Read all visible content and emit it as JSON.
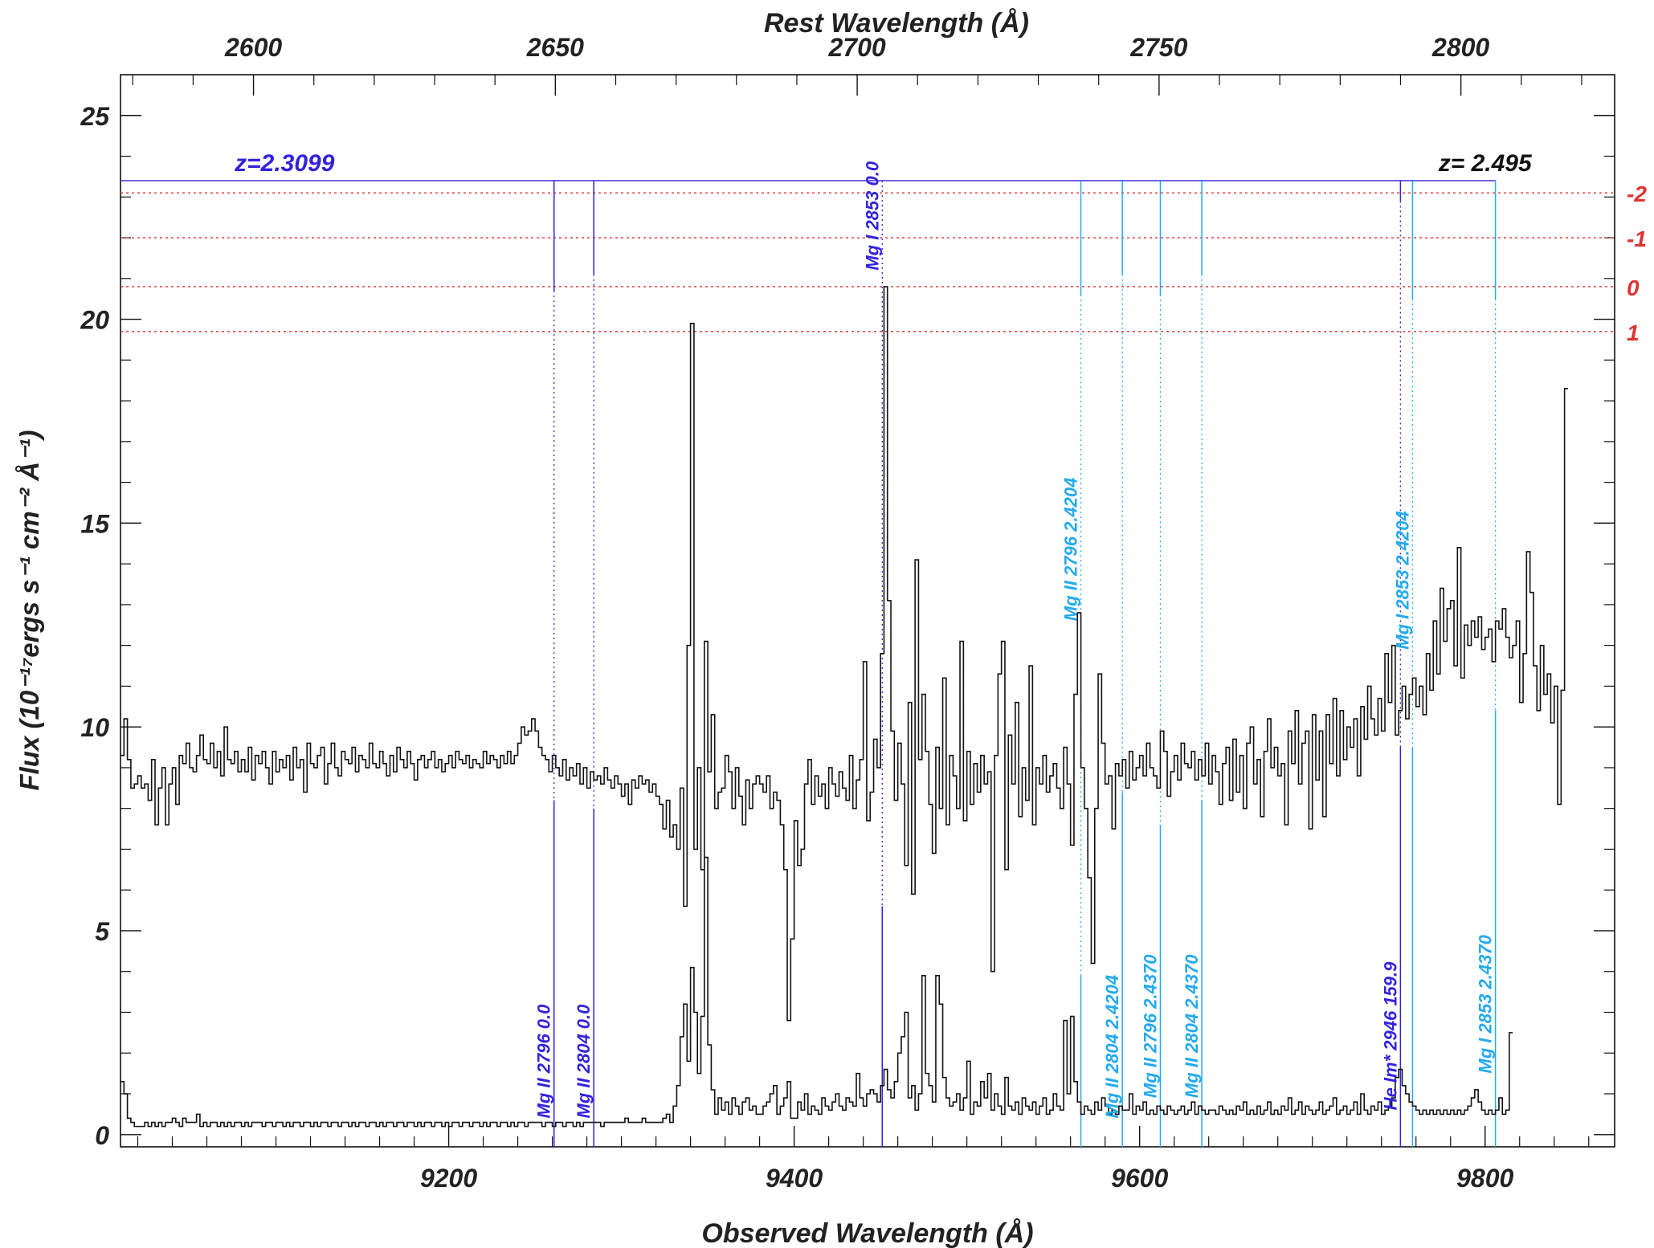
{
  "chart_data": {
    "type": "line",
    "title": "",
    "xlabel": "Observed Wavelength (Å)",
    "ylabel": "Flux (10⁻¹⁷ergs s⁻¹ cm⁻² Å⁻¹)",
    "top_xlabel": "Rest Wavelength (Å)",
    "xlim": [
      9010,
      9875
    ],
    "ylim": [
      -0.3,
      26
    ],
    "x_ticks": [
      9200,
      9400,
      9600,
      9800
    ],
    "x_tick_labels": [
      "9200",
      "9400",
      "9600",
      "9800"
    ],
    "y_ticks": [
      0,
      5,
      10,
      15,
      20,
      25
    ],
    "y_tick_labels": [
      "0",
      "5",
      "10",
      "15",
      "20",
      "25"
    ],
    "top_rest_z": 2.495,
    "top_ticks": [
      2600,
      2650,
      2700,
      2750,
      2800
    ],
    "top_tick_labels": [
      "2600",
      "2650",
      "2700",
      "2750",
      "2800"
    ],
    "grid": false,
    "series": [
      {
        "key": "flux",
        "color": "#111111",
        "x_start": 9010,
        "x_step": 2.0,
        "values": [
          9.3,
          10.2,
          9.2,
          8.5,
          8.6,
          8.8,
          8.5,
          8.6,
          8.2,
          9.2,
          7.6,
          8.5,
          9.0,
          7.6,
          8.6,
          9.0,
          8.1,
          9.3,
          9.1,
          9.6,
          9.0,
          8.9,
          9.3,
          9.8,
          9.2,
          9.1,
          9.6,
          9.0,
          9.4,
          8.8,
          10.0,
          9.2,
          9.1,
          9.4,
          8.9,
          9.2,
          8.9,
          9.5,
          8.7,
          9.3,
          9.1,
          9.4,
          9.0,
          8.6,
          9.4,
          8.9,
          9.2,
          9.0,
          9.3,
          8.7,
          9.5,
          9.0,
          9.2,
          8.4,
          9.6,
          9.1,
          9.0,
          9.3,
          9.5,
          8.6,
          9.1,
          9.6,
          9.0,
          8.8,
          9.4,
          9.2,
          9.1,
          9.5,
          8.9,
          9.3,
          9.2,
          9.0,
          9.6,
          9.1,
          9.0,
          9.4,
          9.1,
          8.8,
          9.3,
          8.9,
          9.5,
          9.2,
          9.0,
          9.4,
          9.1,
          8.7,
          9.2,
          9.3,
          9.0,
          9.2,
          9.4,
          9.0,
          9.2,
          8.9,
          9.1,
          9.3,
          9.0,
          9.4,
          9.2,
          9.1,
          9.3,
          9.0,
          9.2,
          9.1,
          9.0,
          9.4,
          9.1,
          9.3,
          9.2,
          9.0,
          9.3,
          9.1,
          9.4,
          9.1,
          9.3,
          9.6,
          10.0,
          9.8,
          9.9,
          10.2,
          9.9,
          9.5,
          9.3,
          9.2,
          8.9,
          9.3,
          9.0,
          8.8,
          9.2,
          8.7,
          9.0,
          8.8,
          9.1,
          8.6,
          9.0,
          8.5,
          8.9,
          8.7,
          8.8,
          8.6,
          9.0,
          8.7,
          8.5,
          8.8,
          8.6,
          8.3,
          8.6,
          8.1,
          8.7,
          8.5,
          8.8,
          8.6,
          8.7,
          8.4,
          8.6,
          8.3,
          8.1,
          7.5,
          8.2,
          7.3,
          7.6,
          7.0,
          8.5,
          5.6,
          12.0,
          19.9,
          7.0,
          9.0,
          6.5,
          12.1,
          8.9,
          10.3,
          8.0,
          8.4,
          8.5,
          9.3,
          8.9,
          8.0,
          9.0,
          8.3,
          7.6,
          8.7,
          8.0,
          8.6,
          8.8,
          8.6,
          8.4,
          8.8,
          8.0,
          8.4,
          8.2,
          7.6,
          6.5,
          2.8,
          4.8,
          7.7,
          6.6,
          7.0,
          8.6,
          9.2,
          8.1,
          8.8,
          8.3,
          8.6,
          8.0,
          9.0,
          8.6,
          8.3,
          8.9,
          8.5,
          8.2,
          9.3,
          8.0,
          8.7,
          9.2,
          11.6,
          7.7,
          8.4,
          9.7,
          9.0,
          11.8,
          20.8,
          13.1,
          9.9,
          8.2,
          9.6,
          8.6,
          6.6,
          10.6,
          5.9,
          14.1,
          9.2,
          10.8,
          9.4,
          8.1,
          6.9,
          9.5,
          8.0,
          11.2,
          7.6,
          9.3,
          8.8,
          8.0,
          12.1,
          7.7,
          9.4,
          8.1,
          9.1,
          8.4,
          9.3,
          8.6,
          8.9,
          4.0,
          9.3,
          11.3,
          12.1,
          6.5,
          9.8,
          8.6,
          10.6,
          7.8,
          9.0,
          8.2,
          11.5,
          7.6,
          9.0,
          8.6,
          9.3,
          8.4,
          8.8,
          9.1,
          8.5,
          8.0,
          9.5,
          8.6,
          7.1,
          10.8,
          12.8,
          9.0,
          8.0,
          6.3,
          4.2,
          8.0,
          11.3,
          9.6,
          8.6,
          8.8,
          7.5,
          9.1,
          8.8,
          9.2,
          8.5,
          9.4,
          8.7,
          9.0,
          9.3,
          8.8,
          9.6,
          9.0,
          8.8,
          8.5,
          9.9,
          9.4,
          8.3,
          8.9,
          9.3,
          8.7,
          9.6,
          9.1,
          9.0,
          9.4,
          8.7,
          9.2,
          8.8,
          9.6,
          8.6,
          9.3,
          8.9,
          8.1,
          9.1,
          9.5,
          8.2,
          9.7,
          8.4,
          9.3,
          8.0,
          9.6,
          10.0,
          8.6,
          9.2,
          7.8,
          9.4,
          10.2,
          9.0,
          9.5,
          8.8,
          9.1,
          7.6,
          9.9,
          9.1,
          10.4,
          8.6,
          9.6,
          9.9,
          7.5,
          10.3,
          8.7,
          9.9,
          7.8,
          10.3,
          9.1,
          10.7,
          8.8,
          10.4,
          9.2,
          10.0,
          9.5,
          10.2,
          8.8,
          10.5,
          9.7,
          11.0,
          10.2,
          9.8,
          10.7,
          9.9,
          11.8,
          10.6,
          12.0,
          9.8,
          10.4,
          11.0,
          10.2,
          10.8,
          11.2,
          10.5,
          11.0,
          10.3,
          11.8,
          10.9,
          12.6,
          11.3,
          13.4,
          12.1,
          12.9,
          13.1,
          11.5,
          14.4,
          11.2,
          12.5,
          12.0,
          12.6,
          12.2,
          12.7,
          11.9,
          12.2,
          12.4,
          11.6,
          12.6,
          12.4,
          12.9,
          12.2,
          11.7,
          12.0,
          12.6,
          10.6,
          11.8,
          14.3,
          13.3,
          11.5,
          10.4,
          12.0,
          10.8,
          11.3,
          10.1,
          11.0,
          8.1,
          10.9,
          18.3
        ]
      },
      {
        "key": "error",
        "color": "#111111",
        "x_start": 9010,
        "x_step": 2.0,
        "values": [
          1.3,
          1.0,
          0.4,
          0.3,
          0.2,
          0.2,
          0.2,
          0.3,
          0.2,
          0.3,
          0.2,
          0.3,
          0.2,
          0.3,
          0.3,
          0.4,
          0.3,
          0.2,
          0.4,
          0.3,
          0.3,
          0.3,
          0.5,
          0.2,
          0.3,
          0.2,
          0.3,
          0.3,
          0.2,
          0.3,
          0.2,
          0.3,
          0.2,
          0.3,
          0.3,
          0.2,
          0.3,
          0.2,
          0.3,
          0.3,
          0.3,
          0.2,
          0.3,
          0.3,
          0.2,
          0.3,
          0.3,
          0.2,
          0.3,
          0.2,
          0.3,
          0.3,
          0.2,
          0.3,
          0.3,
          0.2,
          0.3,
          0.2,
          0.3,
          0.3,
          0.2,
          0.3,
          0.3,
          0.2,
          0.3,
          0.3,
          0.2,
          0.3,
          0.2,
          0.3,
          0.3,
          0.2,
          0.3,
          0.3,
          0.2,
          0.3,
          0.2,
          0.3,
          0.3,
          0.2,
          0.3,
          0.3,
          0.2,
          0.3,
          0.3,
          0.2,
          0.3,
          0.2,
          0.3,
          0.3,
          0.2,
          0.3,
          0.3,
          0.2,
          0.3,
          0.2,
          0.3,
          0.3,
          0.2,
          0.3,
          0.3,
          0.2,
          0.3,
          0.3,
          0.2,
          0.3,
          0.2,
          0.3,
          0.3,
          0.2,
          0.3,
          0.3,
          0.2,
          0.3,
          0.2,
          0.3,
          0.3,
          0.2,
          0.3,
          0.3,
          0.3,
          0.3,
          0.2,
          0.3,
          0.3,
          0.2,
          0.3,
          0.3,
          0.2,
          0.3,
          0.3,
          0.2,
          0.3,
          0.2,
          0.3,
          0.3,
          0.3,
          0.3,
          0.3,
          0.2,
          0.3,
          0.3,
          0.3,
          0.3,
          0.3,
          0.3,
          0.4,
          0.3,
          0.3,
          0.3,
          0.3,
          0.4,
          0.3,
          0.3,
          0.3,
          0.3,
          0.3,
          0.4,
          0.5,
          0.3,
          0.7,
          1.2,
          2.4,
          3.2,
          1.8,
          4.1,
          3.0,
          1.5,
          2.9,
          6.8,
          2.2,
          1.1,
          0.5,
          0.9,
          0.6,
          0.8,
          0.5,
          0.9,
          0.7,
          0.5,
          0.8,
          0.9,
          0.6,
          0.7,
          0.5,
          0.5,
          0.7,
          0.8,
          1.0,
          1.2,
          0.5,
          0.7,
          0.9,
          1.3,
          0.4,
          0.4,
          0.8,
          0.6,
          1.0,
          0.5,
          0.7,
          0.6,
          0.5,
          0.9,
          0.7,
          0.6,
          0.8,
          1.0,
          0.7,
          0.6,
          0.9,
          0.8,
          0.7,
          1.5,
          0.9,
          0.7,
          1.0,
          1.1,
          1.0,
          0.8,
          1.2,
          1.6,
          1.1,
          0.9,
          1.3,
          2.0,
          2.4,
          3.0,
          0.9,
          1.2,
          0.6,
          1.0,
          3.9,
          1.5,
          1.2,
          0.8,
          3.9,
          3.2,
          1.4,
          0.9,
          0.7,
          0.8,
          1.0,
          0.6,
          0.9,
          1.8,
          0.5,
          0.8,
          0.7,
          1.3,
          0.9,
          1.5,
          0.6,
          1.0,
          0.7,
          0.5,
          1.4,
          0.7,
          0.6,
          0.8,
          0.5,
          0.9,
          0.7,
          0.6,
          0.8,
          0.5,
          0.7,
          0.9,
          0.5,
          0.6,
          1.0,
          0.7,
          0.6,
          2.8,
          1.0,
          2.9,
          1.3,
          0.8,
          0.5,
          0.7,
          0.6,
          0.5,
          0.8,
          0.6,
          0.9,
          0.7,
          0.5,
          0.6,
          0.5,
          0.7,
          0.6,
          0.6,
          1.0,
          0.5,
          0.7,
          0.6,
          0.8,
          0.5,
          0.6,
          0.5,
          0.7,
          0.6,
          0.5,
          0.7,
          0.6,
          0.5,
          0.6,
          0.7,
          0.5,
          0.6,
          0.8,
          0.5,
          0.7,
          0.6,
          0.5,
          0.6,
          0.6,
          0.5,
          0.7,
          0.6,
          0.5,
          0.6,
          0.5,
          0.7,
          0.6,
          0.8,
          0.5,
          0.6,
          0.5,
          0.7,
          0.5,
          0.6,
          0.8,
          0.5,
          0.6,
          0.5,
          0.7,
          0.6,
          0.9,
          0.5,
          0.6,
          0.8,
          0.5,
          0.7,
          0.6,
          0.5,
          0.6,
          0.8,
          0.5,
          0.6,
          0.7,
          0.9,
          0.5,
          0.6,
          0.7,
          0.5,
          0.6,
          0.8,
          0.5,
          1.0,
          0.6,
          0.5,
          0.7,
          0.6,
          0.8,
          0.5,
          0.6,
          0.7,
          0.9,
          1.4,
          1.6,
          1.2,
          1.0,
          0.8,
          0.7,
          0.6,
          0.5,
          0.6,
          0.5,
          0.6,
          0.5,
          0.6,
          0.5,
          0.6,
          0.5,
          0.6,
          0.5,
          0.6,
          0.5,
          0.6,
          0.7,
          0.9,
          1.1,
          0.8,
          0.6,
          0.5,
          0.6,
          0.5,
          0.6,
          0.9,
          0.5,
          0.6,
          2.5
        ]
      }
    ],
    "z_labels": [
      {
        "text": "z=2.3099",
        "color": "#3322dd",
        "x": 9105
      },
      {
        "text": "z= 2.495",
        "color": "#111111",
        "x": 9800
      }
    ],
    "system_bar": {
      "y": 23.4,
      "x0": 9010,
      "x1": 9806,
      "color": "#3322dd"
    },
    "sigma_lines": {
      "color": "#dd3333",
      "levels": [
        {
          "label": "-2",
          "y": 23.1
        },
        {
          "label": "-1",
          "y": 22.0
        },
        {
          "label": "0",
          "y": 20.8
        },
        {
          "label": "1",
          "y": 19.7
        }
      ]
    },
    "line_ids": [
      {
        "x": 9261,
        "label": "Mg II 2796 0.0",
        "color": "#3322dd",
        "label_y": 0.4,
        "tick_to": 20.7,
        "solid_from": 8.2
      },
      {
        "x": 9284,
        "label": "Mg II 2804 0.0",
        "color": "#3322dd",
        "label_y": 0.4,
        "tick_to": 21.1,
        "solid_from": 8.0
      },
      {
        "x": 9451,
        "label": "Mg I 2853 0.0",
        "color": "#3322dd",
        "label_y": 21.2,
        "tick_to": 23.4,
        "solid_from": 5.6
      },
      {
        "x": 9566,
        "label": "Mg II 2796 2.4204",
        "color": "#22aaee",
        "label_y": 12.6,
        "tick_to": 20.6,
        "solid_from": 3.9
      },
      {
        "x": 9590,
        "label": "Mg II 2804 2.4204",
        "color": "#22aaee",
        "label_y": 0.4,
        "tick_to": 21.1,
        "solid_from": 8.4
      },
      {
        "x": 9612,
        "label": "Mg II 2796 2.4370",
        "color": "#22aaee",
        "label_y": 0.9,
        "tick_to": 20.6,
        "solid_from": 7.6
      },
      {
        "x": 9636,
        "label": "Mg II 2804 2.4370",
        "color": "#22aaee",
        "label_y": 0.9,
        "tick_to": 21.1,
        "solid_from": 8.2
      },
      {
        "x": 9751,
        "label": "He Im* 2946 159.9",
        "color": "#3322dd",
        "label_y": 0.6,
        "tick_to": 22.9,
        "solid_from": 9.5
      },
      {
        "x": 9758,
        "label": "Mg I 2853 2.4204",
        "color": "#22aaee",
        "label_y": 11.9,
        "tick_to": 20.5,
        "solid_from": 9.5
      },
      {
        "x": 9806,
        "label": "Mg I 2853 2.4370",
        "color": "#22aaee",
        "label_y": 1.5,
        "tick_to": 20.5,
        "solid_from": 10.4
      }
    ]
  }
}
